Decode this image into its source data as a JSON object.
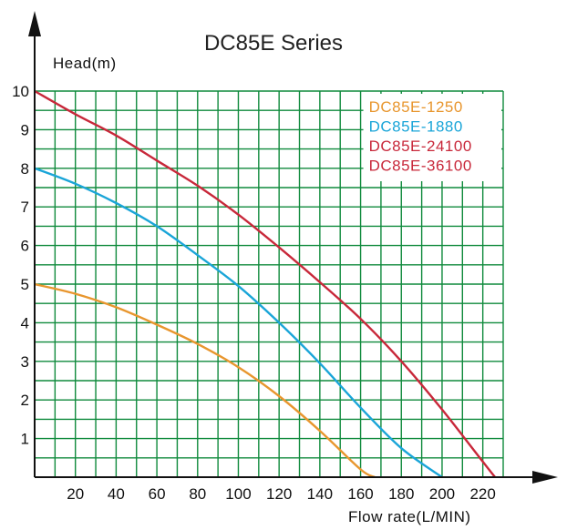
{
  "chart_data": {
    "type": "line",
    "title": "DC85E Series",
    "ylabel": "Head(m)",
    "xlabel": "Flow rate(L/MIN)",
    "xlim": [
      0,
      230
    ],
    "ylim": [
      0,
      10
    ],
    "x_ticks": [
      20,
      40,
      60,
      80,
      100,
      120,
      140,
      160,
      180,
      200,
      220
    ],
    "y_ticks": [
      1,
      2,
      3,
      4,
      5,
      6,
      7,
      8,
      9,
      10
    ],
    "grid": true,
    "grid_color": "#0f8a3c",
    "legend_position": "top-right",
    "series": [
      {
        "name": "DC85E-1250",
        "color": "#e8962e",
        "x": [
          0,
          20,
          40,
          60,
          80,
          100,
          120,
          140,
          160,
          167
        ],
        "y": [
          5.0,
          4.75,
          4.4,
          3.95,
          3.45,
          2.85,
          2.1,
          1.2,
          0.2,
          0
        ]
      },
      {
        "name": "DC85E-1880",
        "color": "#1aa5d8",
        "x": [
          0,
          20,
          40,
          60,
          80,
          100,
          120,
          140,
          160,
          180,
          200
        ],
        "y": [
          8.0,
          7.6,
          7.1,
          6.5,
          5.75,
          4.95,
          4.0,
          2.95,
          1.8,
          0.75,
          0
        ]
      },
      {
        "name": "DC85E-24100",
        "color": "#c8283a",
        "x": [
          0,
          20,
          40,
          60,
          80,
          100,
          120,
          140,
          160,
          180,
          200,
          220,
          226
        ],
        "y": [
          10.0,
          9.4,
          8.85,
          8.2,
          7.55,
          6.8,
          5.95,
          5.05,
          4.1,
          3.0,
          1.75,
          0.4,
          0
        ]
      }
    ],
    "legend_entries": [
      {
        "label": "DC85E-1250",
        "color": "#e8962e"
      },
      {
        "label": "DC85E-1880",
        "color": "#1aa5d8"
      },
      {
        "label": "DC85E-24100",
        "color": "#c8283a"
      },
      {
        "label": "DC85E-36100",
        "color": "#c8283a"
      }
    ]
  }
}
